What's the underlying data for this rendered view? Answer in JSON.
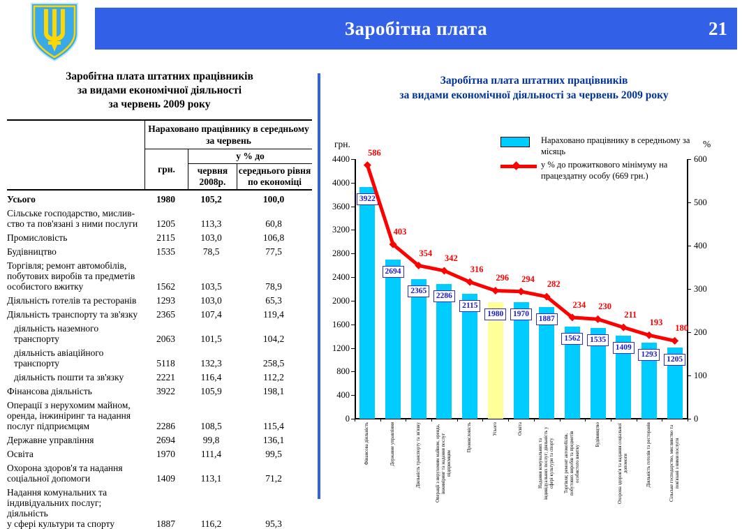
{
  "header": {
    "title": "Заробітна плата",
    "page_number": "21",
    "bar_color": "#3261e8"
  },
  "emblem": {
    "name": "coat-of-arms-ukraine",
    "shield_color": "#3aa9e9",
    "trident_color": "#ffd700"
  },
  "table_panel": {
    "title_lines": [
      "Заробітна плата штатних працівників",
      "за видами економічної діяльності",
      "за червень 2009 року"
    ],
    "header": {
      "group": "Нараховано працівнику в середньому за червень",
      "pct_group": "у % до",
      "col_uah": "грн.",
      "col_jun2008": "червня 2008р.",
      "col_avg": "середнього рівня по економіці"
    },
    "rows": [
      {
        "label": "Усього",
        "uah": "1980",
        "pct_jun2008": "105,2",
        "pct_avg": "100,0",
        "bold": true
      },
      {
        "label": "Сільське господарство, мислив-\nство та пов'язані з ними послуги",
        "uah": "1205",
        "pct_jun2008": "113,3",
        "pct_avg": "60,8"
      },
      {
        "label": "Промисловість",
        "uah": "2115",
        "pct_jun2008": "103,0",
        "pct_avg": "106,8"
      },
      {
        "label": "Будівництво",
        "uah": "1535",
        "pct_jun2008": "78,5",
        "pct_avg": "77,5"
      },
      {
        "label": "Торгівля; ремонт автомобілів,\nпобутових виробів та предметів\nособистого вжитку",
        "uah": "1562",
        "pct_jun2008": "103,5",
        "pct_avg": "78,9"
      },
      {
        "label": "Діяльність готелів та ресторанів",
        "uah": "1293",
        "pct_jun2008": "103,0",
        "pct_avg": "65,3"
      },
      {
        "label": "Діяльність транспорту та зв'язку",
        "uah": "2365",
        "pct_jun2008": "107,4",
        "pct_avg": "119,4"
      },
      {
        "label": "діяльність наземного транспорту",
        "uah": "2063",
        "pct_jun2008": "101,5",
        "pct_avg": "104,2",
        "indent": true
      },
      {
        "label": "діяльність авіаційного\nтранспорту",
        "uah": "5118",
        "pct_jun2008": "132,3",
        "pct_avg": "258,5",
        "indent": true
      },
      {
        "label": "діяльність пошти та зв'язку",
        "uah": "2221",
        "pct_jun2008": "116,4",
        "pct_avg": "112,2",
        "indent": true
      },
      {
        "label": "Фінансова діяльність",
        "uah": "3922",
        "pct_jun2008": "105,9",
        "pct_avg": "198,1"
      },
      {
        "label": "Операції з нерухомим майном,\nоренда, інжиніринг та надання\nпослуг підприємцям",
        "uah": "2286",
        "pct_jun2008": "108,5",
        "pct_avg": "115,4"
      },
      {
        "label": "Державне управління",
        "uah": "2694",
        "pct_jun2008": "99,8",
        "pct_avg": "136,1"
      },
      {
        "label": "Освіта",
        "uah": "1970",
        "pct_jun2008": "111,4",
        "pct_avg": "99,5"
      },
      {
        "label": "Охорона здоров'я та надання\nсоціальної допомоги",
        "uah": "1409",
        "pct_jun2008": "113,1",
        "pct_avg": "71,2"
      },
      {
        "label": "Надання комунальних та\nіндивідуальних послуг; діяльність\nу сфері культури та спорту",
        "uah": "1887",
        "pct_jun2008": "116,2",
        "pct_avg": "95,3"
      }
    ]
  },
  "chart_panel": {
    "title_lines": [
      "Заробітна плата штатних працівників",
      "за видами економічної діяльності за червень 2009 року"
    ],
    "title_color": "#003399"
  },
  "chart_data": {
    "type": "bar",
    "title": "Заробітна плата штатних працівників за видами економічної діяльності за червень 2009 року",
    "categories": [
      "Фінансова діяльність",
      "Державне управління",
      "Діяльність транспорту та зв'язку",
      "Операції з нерухомим майном, оренда, інжиніринг та надання послуг підприємцям",
      "Промисловість",
      "Усього",
      "Освіта",
      "Надання комунальних та індивідуальних послуг; діяльність у сфері культури та спорту",
      "Торгівля; ремонт автомобілів, побутових виробів та предметів особистого вжитку",
      "Будівництво",
      "Охорона здоров'я та надання соціальної допомоги",
      "Діяльність готелів та ресторанів",
      "Сільське господарство, мисливство та пов'язані з ними послуги"
    ],
    "series": [
      {
        "name": "Нараховано працівнику в середньому за місяць",
        "type": "bar",
        "axis": "left",
        "values": [
          3922,
          2694,
          2365,
          2286,
          2115,
          1980,
          1970,
          1887,
          1562,
          1535,
          1409,
          1293,
          1205
        ],
        "color": "#00ccff",
        "highlight_index": 5,
        "highlight_color": "#ffff99"
      },
      {
        "name": "у % до прожиткового мінімуму на працездатну особу (669 грн.)",
        "type": "line",
        "axis": "right",
        "values": [
          586,
          403,
          354,
          342,
          316,
          296,
          294,
          282,
          234,
          230,
          211,
          193,
          180
        ],
        "color": "#ff0000"
      }
    ],
    "left_axis": {
      "label": "грн.",
      "min": 0,
      "max": 4400,
      "step": 400
    },
    "right_axis": {
      "label": "%",
      "min": 0,
      "max": 600,
      "step": 100
    },
    "legend_position": "top-right",
    "grid": false,
    "legend": [
      "Нараховано працівнику в середньому за місяць",
      "у % до прожиткового мінімуму на працездатну особу (669 грн.)"
    ]
  }
}
